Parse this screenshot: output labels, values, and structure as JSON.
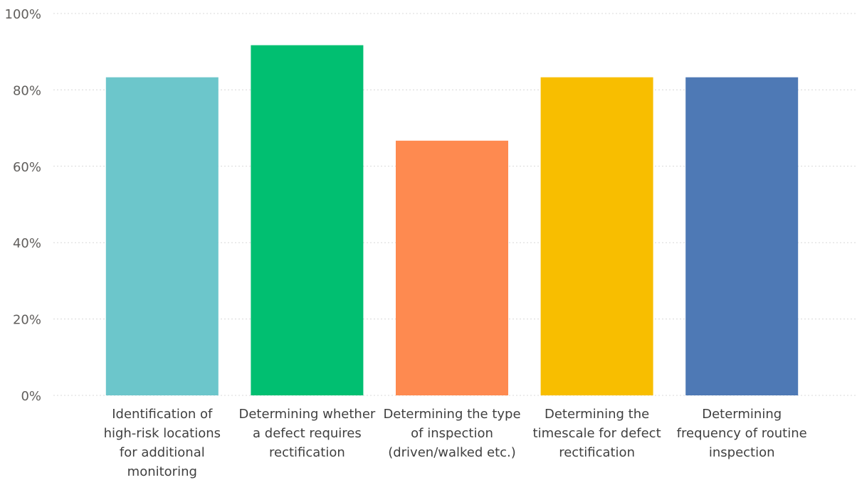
{
  "chart_data": {
    "type": "bar",
    "categories": [
      [
        "Identification of",
        "high-risk locations",
        "for additional",
        "monitoring"
      ],
      [
        "Determining whether",
        "a defect requires",
        "rectification"
      ],
      [
        "Determining the type",
        "of inspection",
        "(driven/walked etc.)"
      ],
      [
        "Determining the",
        "timescale for defect",
        "rectification"
      ],
      [
        "Determining",
        "frequency of routine",
        "inspection"
      ]
    ],
    "values": [
      83.3,
      91.7,
      66.7,
      83.3,
      83.3
    ],
    "colors": [
      "#6cc6cb",
      "#01bf71",
      "#fe8a50",
      "#f8be00",
      "#4e79b5"
    ],
    "ylim": [
      0,
      100
    ],
    "yticks": [
      0,
      20,
      40,
      60,
      80,
      100
    ],
    "ytick_labels": [
      "0%",
      "20%",
      "40%",
      "60%",
      "80%",
      "100%"
    ],
    "grid": true,
    "title": "",
    "xlabel": "",
    "ylabel": ""
  }
}
